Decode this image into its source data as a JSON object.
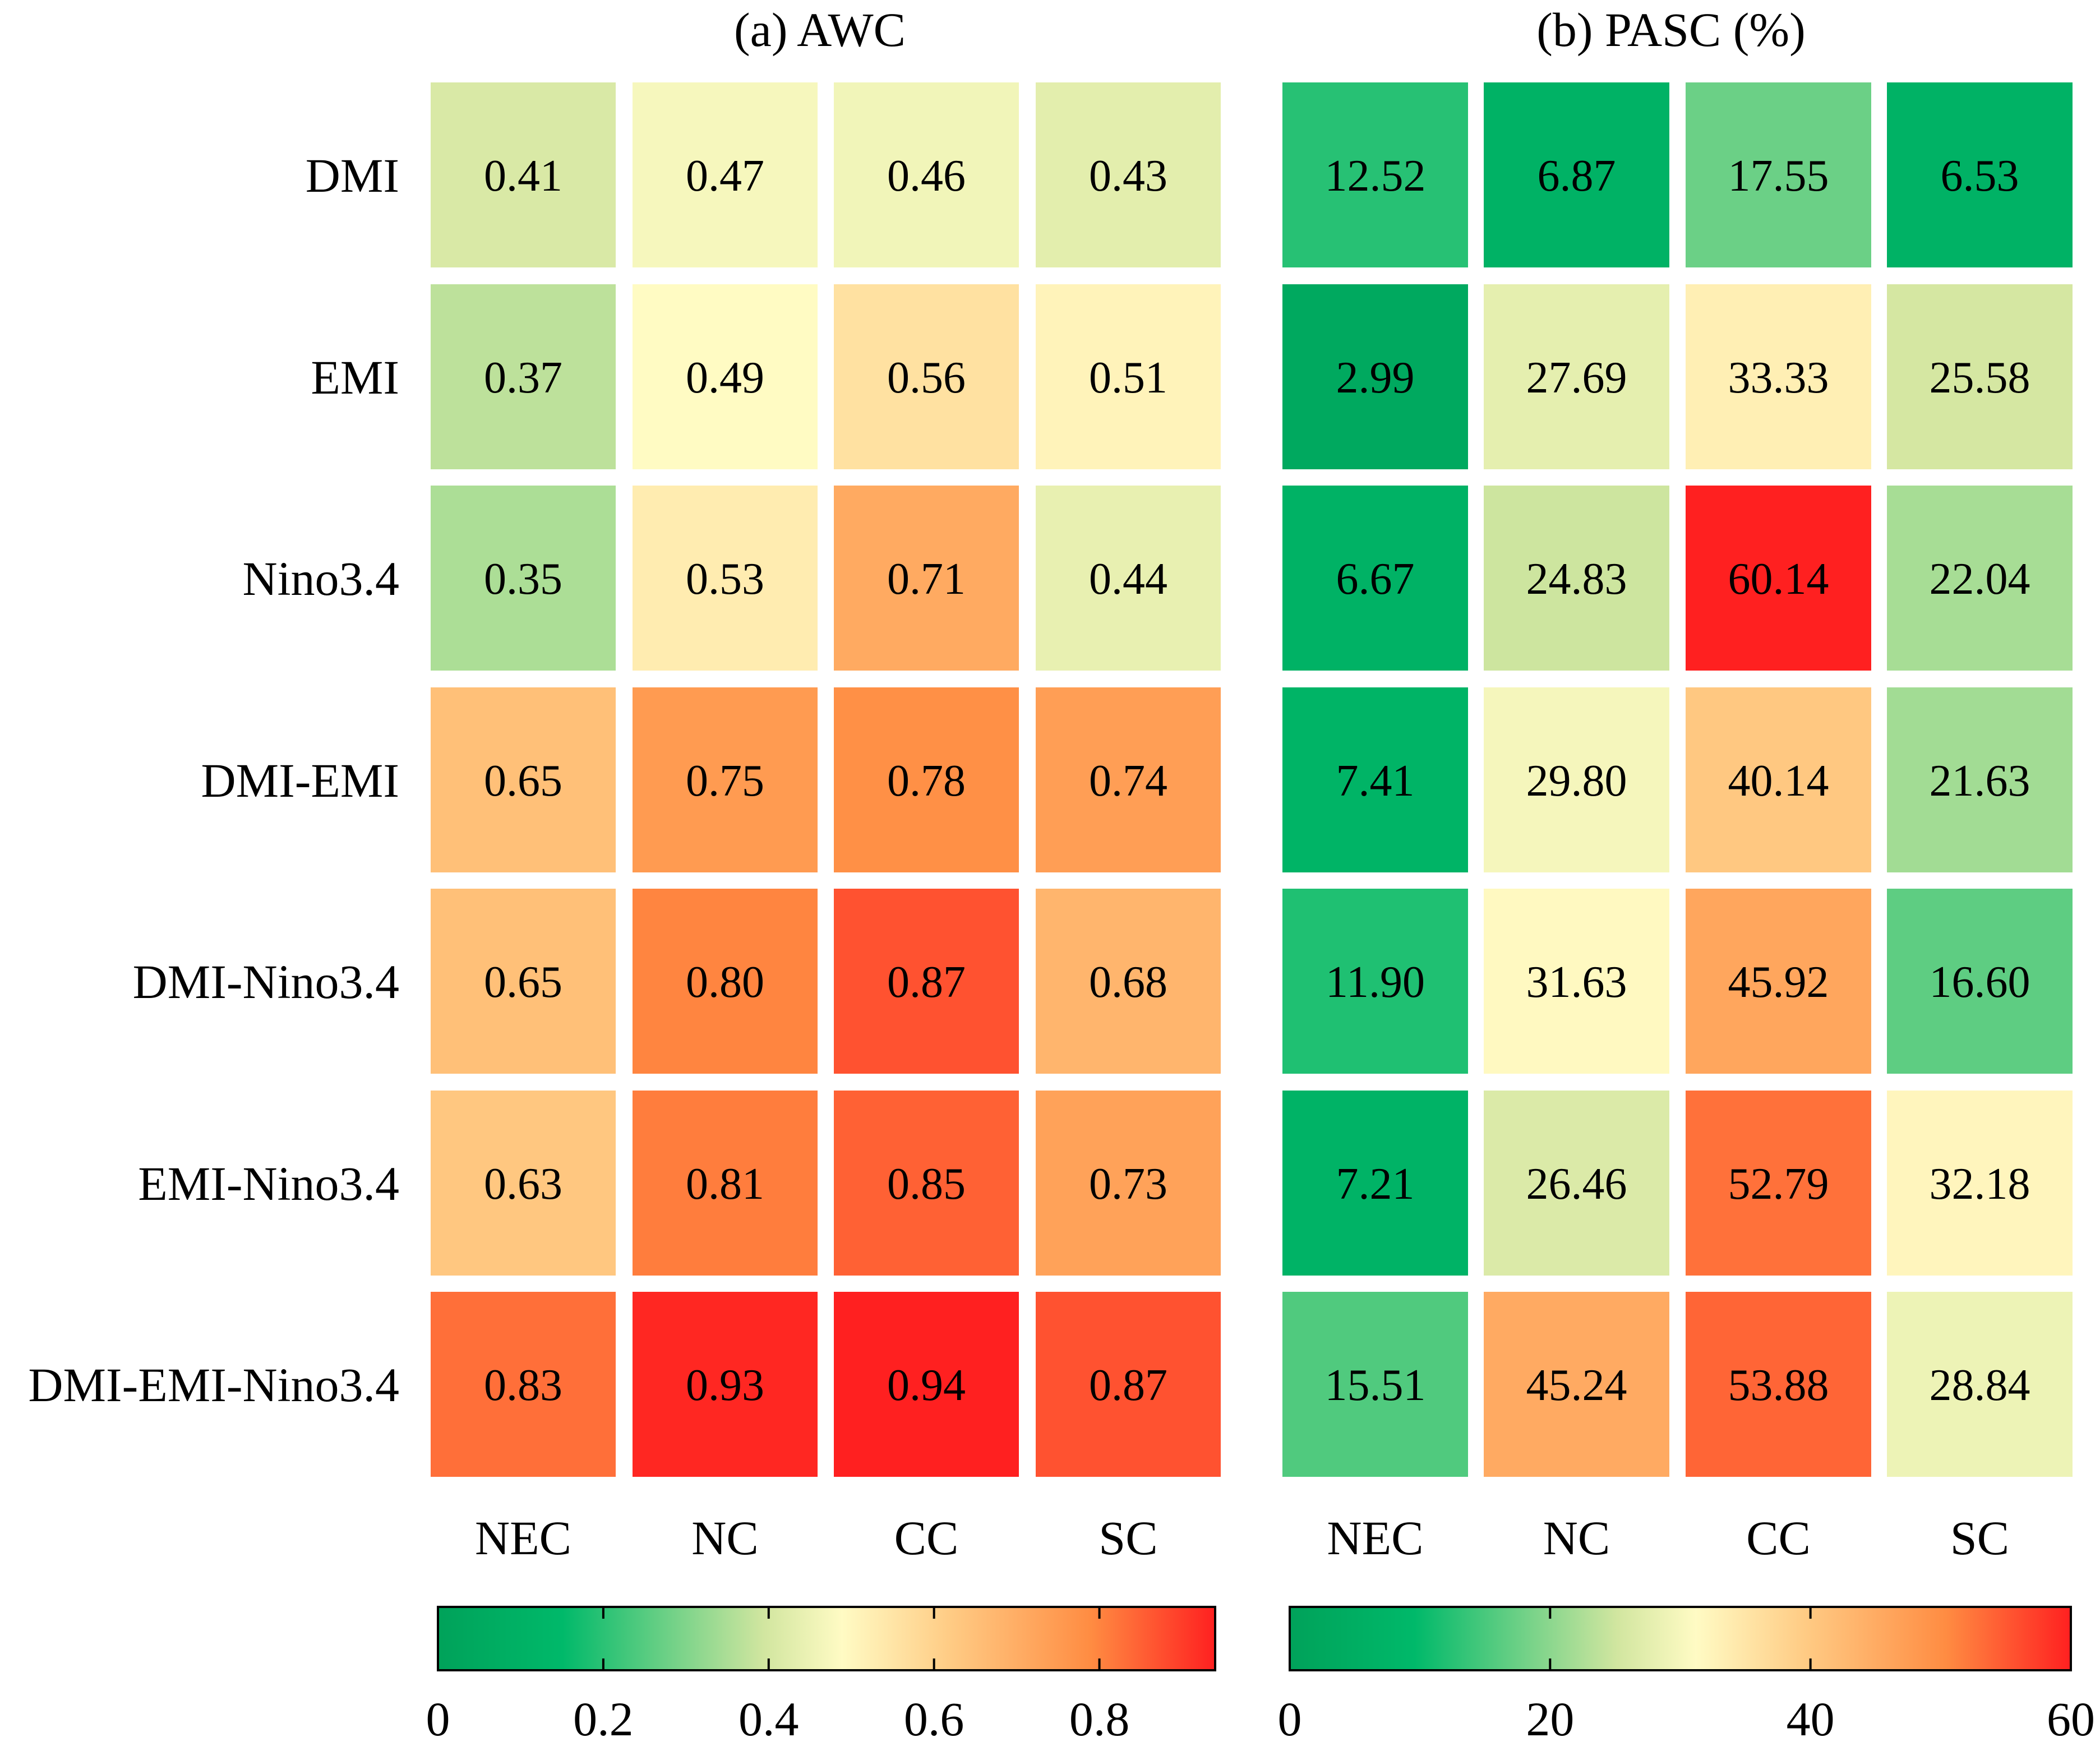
{
  "chart_data": [
    {
      "type": "heatmap",
      "title": "(a) AWC",
      "rows": [
        "DMI",
        "EMI",
        "Nino3.4",
        "DMI-EMI",
        "DMI-Nino3.4",
        "EMI-Nino3.4",
        "DMI-EMI-Nino3.4"
      ],
      "columns": [
        "NEC",
        "NC",
        "CC",
        "SC"
      ],
      "values": [
        [
          "0.41",
          "0.47",
          "0.46",
          "0.43"
        ],
        [
          "0.37",
          "0.49",
          "0.56",
          "0.51"
        ],
        [
          "0.35",
          "0.53",
          "0.71",
          "0.44"
        ],
        [
          "0.65",
          "0.75",
          "0.78",
          "0.74"
        ],
        [
          "0.65",
          "0.80",
          "0.87",
          "0.68"
        ],
        [
          "0.63",
          "0.81",
          "0.85",
          "0.73"
        ],
        [
          "0.83",
          "0.93",
          "0.94",
          "0.87"
        ]
      ],
      "colorbar": {
        "range": [
          0,
          0.94
        ],
        "ticks": [
          "0",
          "0.2",
          "0.4",
          "0.6",
          "0.8"
        ],
        "tick_values": [
          0,
          0.2,
          0.4,
          0.6,
          0.8
        ]
      }
    },
    {
      "type": "heatmap",
      "title": "(b) PASC (%)",
      "rows": [
        "DMI",
        "EMI",
        "Nino3.4",
        "DMI-EMI",
        "DMI-Nino3.4",
        "EMI-Nino3.4",
        "DMI-EMI-Nino3.4"
      ],
      "columns": [
        "NEC",
        "NC",
        "CC",
        "SC"
      ],
      "values": [
        [
          "12.52",
          "6.87",
          "17.55",
          "6.53"
        ],
        [
          "2.99",
          "27.69",
          "33.33",
          "25.58"
        ],
        [
          "6.67",
          "24.83",
          "60.14",
          "22.04"
        ],
        [
          "7.41",
          "29.80",
          "40.14",
          "21.63"
        ],
        [
          "11.90",
          "31.63",
          "45.92",
          "16.60"
        ],
        [
          "7.21",
          "26.46",
          "52.79",
          "32.18"
        ],
        [
          "15.51",
          "45.24",
          "53.88",
          "28.84"
        ]
      ],
      "colorbar": {
        "range": [
          0,
          60
        ],
        "ticks": [
          "0",
          "20",
          "40",
          "60"
        ],
        "tick_values": [
          0,
          20,
          40,
          60
        ]
      }
    }
  ],
  "colors": {
    "colormap": [
      "#00A25A",
      "#00B96A",
      "#D2E6A0",
      "#FFFBC4",
      "#FFCB84",
      "#FF8C42",
      "#FF2020"
    ],
    "colormap_stops": [
      0,
      0.16,
      0.42,
      0.52,
      0.66,
      0.84,
      1
    ],
    "text": "#000000"
  }
}
